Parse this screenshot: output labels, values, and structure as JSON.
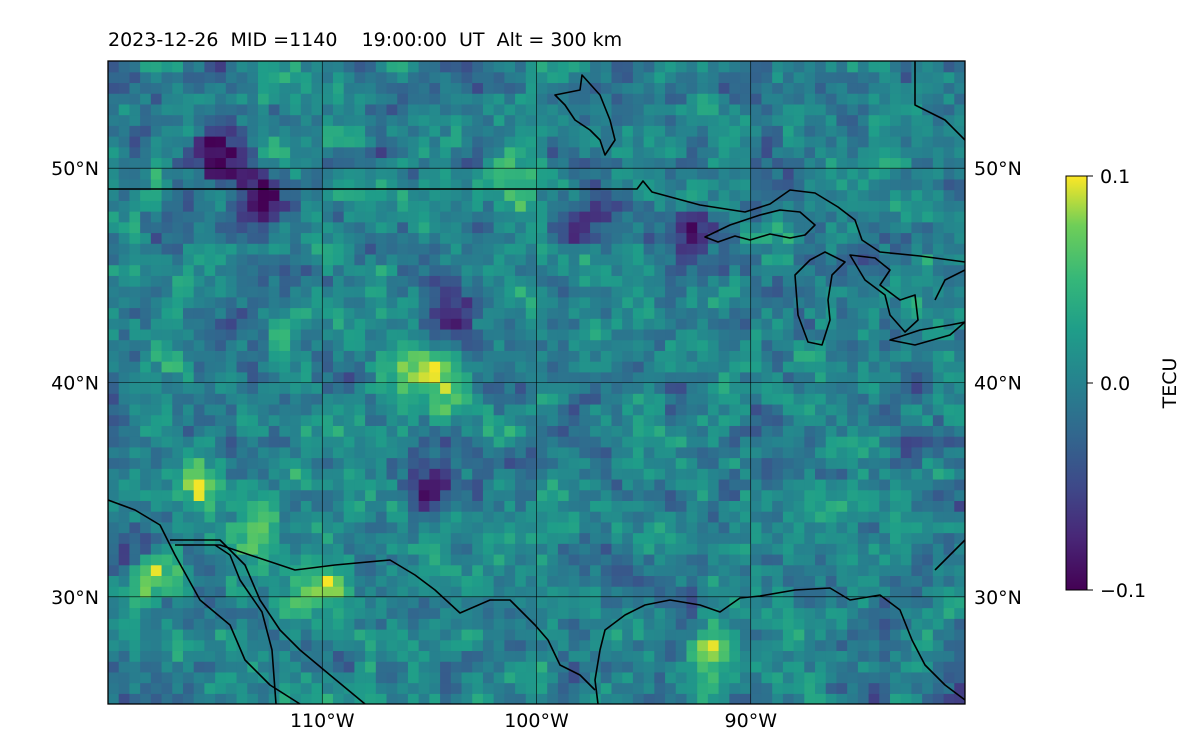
{
  "title": "2023-12-26  MID =1140    19:00:00  UT  Alt = 300 km",
  "chart_data": {
    "type": "heatmap",
    "title": "2023-12-26  MID =1140    19:00:00  UT  Alt = 300 km",
    "x_range_deg": [
      -120,
      -80
    ],
    "y_range_deg": [
      25,
      55
    ],
    "grid": true,
    "x_ticks": [
      {
        "value": -110,
        "label": "110°W"
      },
      {
        "value": -100,
        "label": "100°W"
      },
      {
        "value": -90,
        "label": "90°W"
      }
    ],
    "y_ticks": [
      {
        "value": 30,
        "label": "30°N"
      },
      {
        "value": 40,
        "label": "40°N"
      },
      {
        "value": 50,
        "label": "50°N"
      }
    ],
    "colorbar": {
      "label": "TECU",
      "min": -0.1,
      "max": 0.1,
      "colormap": "viridis",
      "ticks": [
        {
          "value": 0.1,
          "label": "0.1"
        },
        {
          "value": 0.0,
          "label": "0.0"
        },
        {
          "value": -0.1,
          "label": "−0.1"
        }
      ]
    },
    "grid_resolution_deg": 0.5,
    "hot_spots": [
      {
        "lon": -118,
        "lat": 31,
        "value": 0.1
      },
      {
        "lon": -116,
        "lat": 35,
        "value": 0.09
      },
      {
        "lon": -110,
        "lat": 30.5,
        "value": 0.08
      },
      {
        "lon": -104,
        "lat": 40,
        "value": 0.08
      },
      {
        "lon": -106,
        "lat": 40.2,
        "value": 0.07
      },
      {
        "lon": -113,
        "lat": 33,
        "value": 0.07
      },
      {
        "lon": -92,
        "lat": 27,
        "value": 0.07
      },
      {
        "lon": -101,
        "lat": 49.3,
        "value": 0.06
      }
    ],
    "cold_spots": [
      {
        "lon": -115,
        "lat": 50.5,
        "value": -0.1
      },
      {
        "lon": -113,
        "lat": 48.8,
        "value": -0.09
      },
      {
        "lon": -105,
        "lat": 35.5,
        "value": -0.08
      },
      {
        "lon": -104,
        "lat": 43,
        "value": -0.08
      },
      {
        "lon": -93,
        "lat": 46.8,
        "value": -0.07
      },
      {
        "lon": -119,
        "lat": 32,
        "value": -0.07
      },
      {
        "lon": -98,
        "lat": 47.5,
        "value": -0.06
      }
    ]
  }
}
